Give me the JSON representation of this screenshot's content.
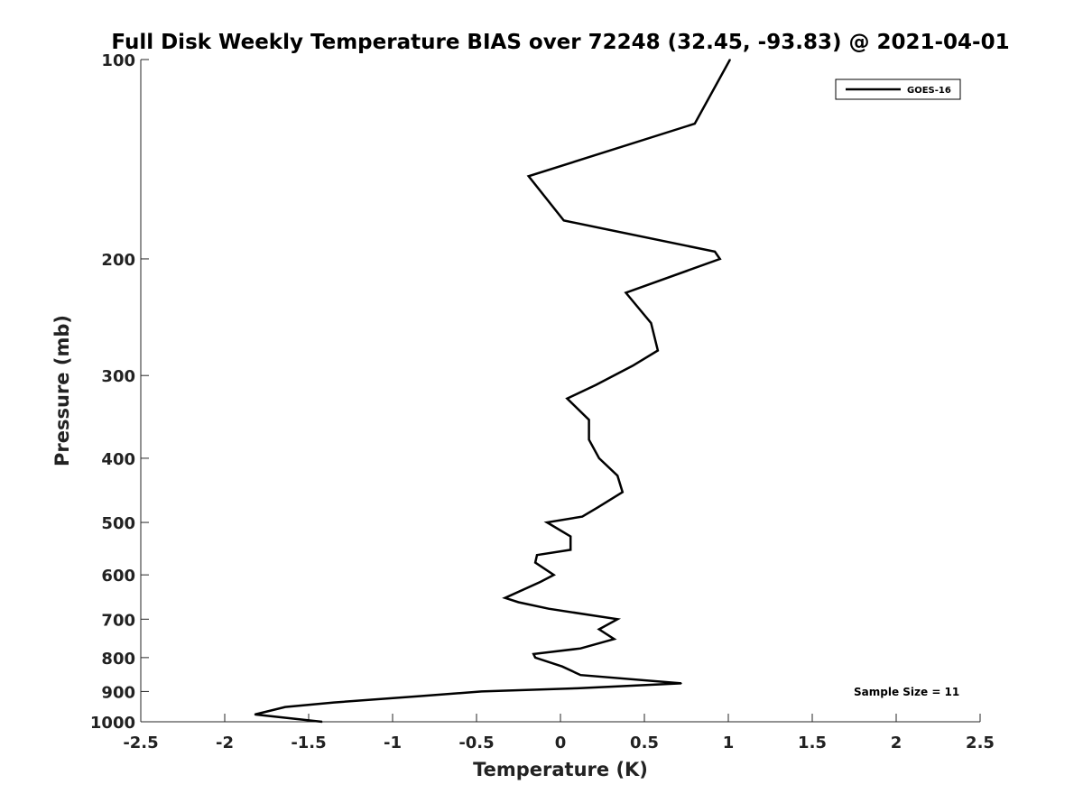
{
  "chart_data": {
    "type": "line",
    "title": "Full Disk Weekly Temperature BIAS over 72248 (32.45, -93.83) @ 2021-04-01",
    "xlabel": "Temperature (K)",
    "ylabel": "Pressure (mb)",
    "xlim": [
      -2.5,
      2.5
    ],
    "ylim": [
      1000,
      100
    ],
    "yscale": "log",
    "y_reversed": true,
    "grid": false,
    "legend_position": "top-right",
    "x_ticks": [
      -2.5,
      -2,
      -1.5,
      -1,
      -0.5,
      0,
      0.5,
      1,
      1.5,
      2,
      2.5
    ],
    "x_tick_labels": [
      "-2.5",
      "-2",
      "-1.5",
      "-1",
      "-0.5",
      "0",
      "0.5",
      "1",
      "1.5",
      "2",
      "2.5"
    ],
    "y_ticks": [
      100,
      200,
      300,
      400,
      500,
      600,
      700,
      800,
      900,
      1000
    ],
    "y_tick_labels": [
      "100",
      "200",
      "300",
      "400",
      "500",
      "600",
      "700",
      "800",
      "900",
      "1000"
    ],
    "annotation": "Sample Size = 11",
    "series": [
      {
        "name": "GOES-16",
        "color": "#000000",
        "points": [
          {
            "x": 1.01,
            "y": 100
          },
          {
            "x": 0.8,
            "y": 125
          },
          {
            "x": -0.19,
            "y": 150
          },
          {
            "x": 0.02,
            "y": 175
          },
          {
            "x": 0.92,
            "y": 195
          },
          {
            "x": 0.95,
            "y": 200
          },
          {
            "x": 0.39,
            "y": 225
          },
          {
            "x": 0.54,
            "y": 250
          },
          {
            "x": 0.58,
            "y": 275
          },
          {
            "x": 0.43,
            "y": 290
          },
          {
            "x": 0.21,
            "y": 310
          },
          {
            "x": 0.04,
            "y": 325
          },
          {
            "x": 0.17,
            "y": 350
          },
          {
            "x": 0.17,
            "y": 375
          },
          {
            "x": 0.23,
            "y": 400
          },
          {
            "x": 0.34,
            "y": 425
          },
          {
            "x": 0.37,
            "y": 450
          },
          {
            "x": 0.22,
            "y": 475
          },
          {
            "x": 0.13,
            "y": 490
          },
          {
            "x": -0.08,
            "y": 500
          },
          {
            "x": 0.06,
            "y": 525
          },
          {
            "x": 0.06,
            "y": 550
          },
          {
            "x": -0.14,
            "y": 560
          },
          {
            "x": -0.15,
            "y": 575
          },
          {
            "x": -0.04,
            "y": 600
          },
          {
            "x": -0.12,
            "y": 615
          },
          {
            "x": -0.33,
            "y": 650
          },
          {
            "x": -0.25,
            "y": 660
          },
          {
            "x": -0.07,
            "y": 675
          },
          {
            "x": 0.34,
            "y": 700
          },
          {
            "x": 0.23,
            "y": 725
          },
          {
            "x": 0.32,
            "y": 750
          },
          {
            "x": 0.12,
            "y": 775
          },
          {
            "x": -0.16,
            "y": 790
          },
          {
            "x": -0.15,
            "y": 800
          },
          {
            "x": 0.01,
            "y": 825
          },
          {
            "x": 0.12,
            "y": 850
          },
          {
            "x": 0.72,
            "y": 875
          },
          {
            "x": 0.1,
            "y": 890
          },
          {
            "x": -0.47,
            "y": 900
          },
          {
            "x": -0.85,
            "y": 915
          },
          {
            "x": -1.35,
            "y": 935
          },
          {
            "x": -1.64,
            "y": 950
          },
          {
            "x": -1.82,
            "y": 975
          },
          {
            "x": -1.42,
            "y": 1000
          }
        ]
      }
    ]
  }
}
